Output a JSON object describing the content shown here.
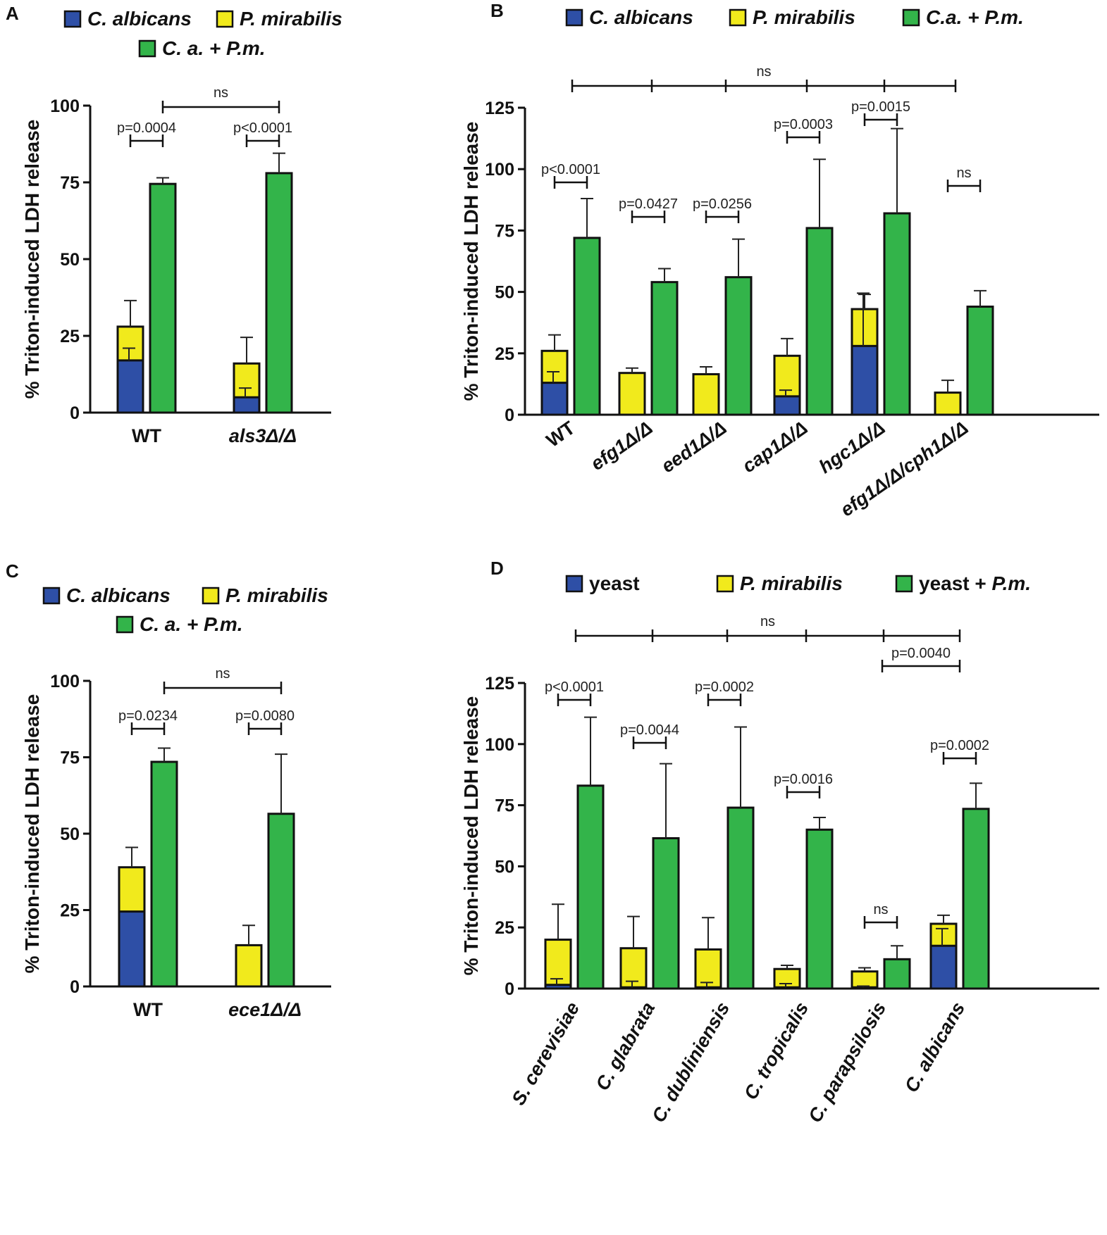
{
  "colors": {
    "c_albicans": "#2e4fa6",
    "p_mirabilis": "#f1ea1c",
    "combo": "#33b44a",
    "axis": "#111111"
  },
  "chart_data": [
    {
      "panel": "A",
      "type": "bar",
      "legend": [
        "C. albicans",
        "P. mirabilis",
        "C. a. + P.m."
      ],
      "ylabel": "% Triton-induced LDH release",
      "ylim": [
        0,
        100
      ],
      "yticks": [
        0,
        25,
        50,
        75,
        100
      ],
      "categories": [
        "WT",
        "als3Δ/Δ"
      ],
      "series": [
        {
          "name": "C. albicans",
          "values": [
            17,
            5
          ],
          "errors": [
            4,
            3
          ]
        },
        {
          "name": "P. mirabilis",
          "values": [
            28,
            16
          ],
          "errors": [
            8.5,
            8.5
          ]
        },
        {
          "name": "C. a. + P.m.",
          "values": [
            74.5,
            78
          ],
          "errors": [
            2,
            6.5
          ]
        }
      ],
      "annotations": [
        {
          "text": "p=0.0004",
          "from": 0,
          "to": 0
        },
        {
          "text": "p<0.0001",
          "from": 1,
          "to": 1
        },
        {
          "text": "ns",
          "from": 0,
          "to": 1
        }
      ]
    },
    {
      "panel": "B",
      "type": "bar",
      "legend": [
        "C. albicans",
        "P. mirabilis",
        "C.a. + P.m."
      ],
      "ylabel": "% Triton-induced LDH release",
      "ylim": [
        0,
        125
      ],
      "yticks": [
        0,
        25,
        50,
        75,
        100,
        125
      ],
      "categories": [
        "WT",
        "efg1Δ/Δ",
        "eed1Δ/Δ",
        "cap1Δ/Δ",
        "hgc1Δ/Δ",
        "efg1Δ/Δ/cph1Δ/Δ"
      ],
      "series": [
        {
          "name": "C. albicans",
          "values": [
            13,
            0,
            0,
            7.5,
            28,
            0
          ],
          "errors": [
            4.5,
            0,
            0,
            2.5,
            21.5,
            0
          ]
        },
        {
          "name": "P. mirabilis",
          "values": [
            26,
            17,
            16.5,
            24,
            43,
            9
          ],
          "errors": [
            6.5,
            2,
            3,
            7,
            6,
            5
          ]
        },
        {
          "name": "C.a. + P.m.",
          "values": [
            72,
            54,
            56,
            76,
            82,
            44
          ],
          "errors": [
            16,
            5.5,
            15.5,
            28,
            34.5,
            6.5
          ]
        }
      ],
      "annotations": [
        {
          "text": "p<0.0001",
          "from": 0,
          "to": 0
        },
        {
          "text": "p=0.0427",
          "from": 1,
          "to": 1
        },
        {
          "text": "p=0.0256",
          "from": 2,
          "to": 2
        },
        {
          "text": "p=0.0003",
          "from": 3,
          "to": 3
        },
        {
          "text": "p=0.0015",
          "from": 4,
          "to": 4
        },
        {
          "text": "ns",
          "from": 5,
          "to": 5
        },
        {
          "text": "ns",
          "from": 0,
          "to": 5
        }
      ]
    },
    {
      "panel": "C",
      "type": "bar",
      "legend": [
        "C. albicans",
        "P. mirabilis",
        "C. a. + P.m."
      ],
      "ylabel": "% Triton-induced LDH release",
      "ylim": [
        0,
        100
      ],
      "yticks": [
        0,
        25,
        50,
        75,
        100
      ],
      "categories": [
        "WT",
        "ece1Δ/Δ"
      ],
      "series": [
        {
          "name": "C. albicans",
          "values": [
            24.5,
            0
          ],
          "errors": [
            0,
            0
          ]
        },
        {
          "name": "P. mirabilis",
          "values": [
            39,
            13.5
          ],
          "errors": [
            6.5,
            6.5
          ]
        },
        {
          "name": "C. a. + P.m.",
          "values": [
            73.5,
            56.5
          ],
          "errors": [
            4.5,
            19.5
          ]
        }
      ],
      "annotations": [
        {
          "text": "p=0.0234",
          "from": 0,
          "to": 0
        },
        {
          "text": "p=0.0080",
          "from": 1,
          "to": 1
        },
        {
          "text": "ns",
          "from": 0,
          "to": 1
        }
      ]
    },
    {
      "panel": "D",
      "type": "bar",
      "legend": [
        "yeast",
        "P. mirabilis",
        "yeast + P.m."
      ],
      "ylabel": "% Triton-induced LDH release",
      "ylim": [
        0,
        125
      ],
      "yticks": [
        0,
        25,
        50,
        75,
        100,
        125
      ],
      "categories": [
        "S. cerevisiae",
        "C. glabrata",
        "C. dubliniensis",
        "C. tropicalis",
        "C. parapsilosis",
        "C. albicans"
      ],
      "series": [
        {
          "name": "yeast",
          "values": [
            1.5,
            0.5,
            0.5,
            0.5,
            0.5,
            17.5
          ],
          "errors": [
            2.5,
            2.5,
            2,
            1.5,
            0.5,
            7
          ]
        },
        {
          "name": "P. mirabilis",
          "values": [
            20,
            16.5,
            16,
            8,
            7,
            26.5
          ],
          "errors": [
            14.5,
            13,
            13,
            1.5,
            1.5,
            3.5
          ]
        },
        {
          "name": "yeast + P.m.",
          "values": [
            83,
            61.5,
            74,
            65,
            12,
            73.5
          ],
          "errors": [
            28,
            30.5,
            33,
            5,
            5.5,
            10.5
          ]
        }
      ],
      "annotations": [
        {
          "text": "p<0.0001",
          "from": 0,
          "to": 0
        },
        {
          "text": "p=0.0044",
          "from": 1,
          "to": 1
        },
        {
          "text": "p=0.0002",
          "from": 2,
          "to": 2
        },
        {
          "text": "p=0.0016",
          "from": 3,
          "to": 3
        },
        {
          "text": "ns",
          "from": 4,
          "to": 4
        },
        {
          "text": "p=0.0002",
          "from": 5,
          "to": 5
        },
        {
          "text": "p=0.0040",
          "from": 4,
          "to": 5
        },
        {
          "text": "ns",
          "from": 0,
          "to": 5
        }
      ]
    }
  ]
}
